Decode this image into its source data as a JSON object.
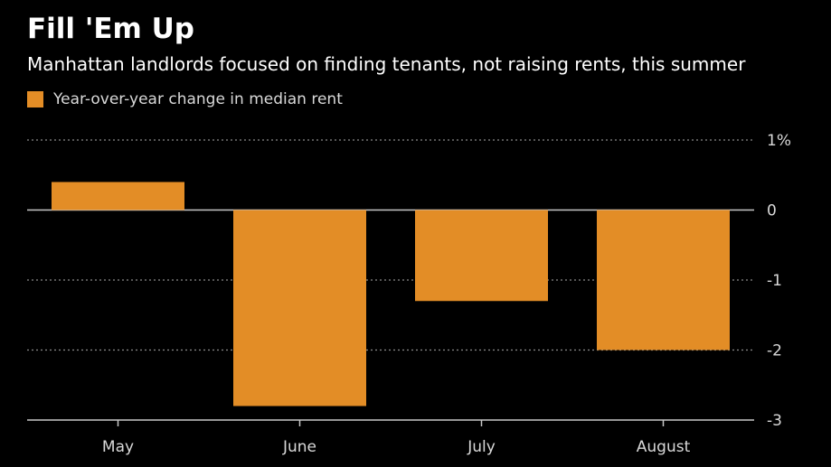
{
  "title": "Fill 'Em Up",
  "subtitle": "Manhattan landlords focused on finding tenants, not raising rents, this summer",
  "legend": {
    "label": "Year-over-year change in median rent",
    "color": "#e38d26"
  },
  "colors": {
    "background": "#000000",
    "bar": "#e38d26",
    "grid": "#8a8a8a",
    "axis": "#c8c8c8",
    "text": "#ffffff",
    "tick_text": "#d9d9d9"
  },
  "chart_data": {
    "type": "bar",
    "title": "Fill 'Em Up",
    "subtitle": "Manhattan landlords focused on finding tenants, not raising rents, this summer",
    "categories": [
      "May",
      "June",
      "July",
      "August"
    ],
    "series": [
      {
        "name": "Year-over-year change in median rent",
        "values": [
          0.4,
          -2.8,
          -1.3,
          -2.0
        ]
      }
    ],
    "ylim": [
      -3,
      1
    ],
    "yticks": [
      1,
      0,
      -1,
      -2,
      -3
    ],
    "ytick_labels": [
      "1%",
      "0",
      "-1",
      "-2",
      "-3"
    ],
    "xlabel": "",
    "ylabel": "",
    "grid": true,
    "legend_position": "top-left"
  }
}
